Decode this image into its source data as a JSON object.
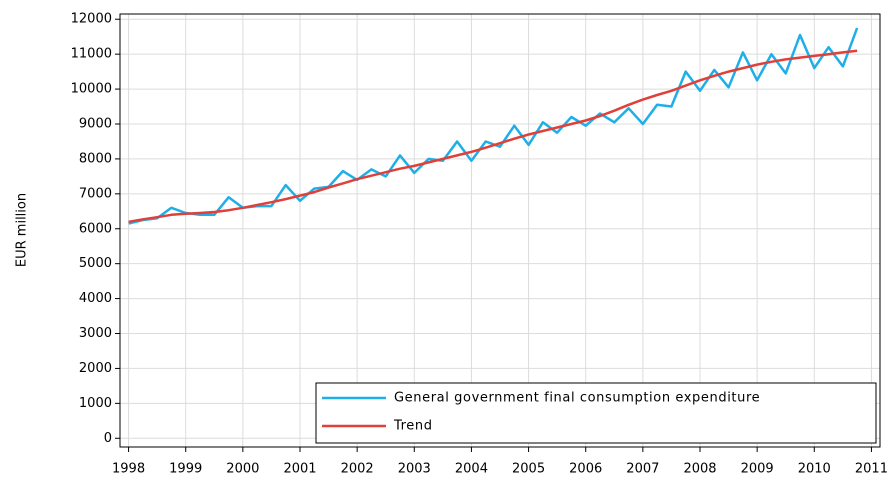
{
  "chart_data": {
    "type": "line",
    "y_label": "EUR million",
    "x": [
      1998,
      1998.25,
      1998.5,
      1998.75,
      1999,
      1999.25,
      1999.5,
      1999.75,
      2000,
      2000.25,
      2000.5,
      2000.75,
      2001,
      2001.25,
      2001.5,
      2001.75,
      2002,
      2002.25,
      2002.5,
      2002.75,
      2003,
      2003.25,
      2003.5,
      2003.75,
      2004,
      2004.25,
      2004.5,
      2004.75,
      2005,
      2005.25,
      2005.5,
      2005.75,
      2006,
      2006.25,
      2006.5,
      2006.75,
      2007,
      2007.25,
      2007.5,
      2007.75,
      2008,
      2008.25,
      2008.5,
      2008.75,
      2009,
      2009.25,
      2009.5,
      2009.75,
      2010,
      2010.25,
      2010.5,
      2010.75
    ],
    "series": [
      {
        "name": "General government final consumption expenditure",
        "color": "#1eaee8",
        "values": [
          6150,
          6250,
          6300,
          6600,
          6450,
          6400,
          6400,
          6900,
          6600,
          6650,
          6650,
          7250,
          6800,
          7150,
          7200,
          7650,
          7400,
          7700,
          7500,
          8100,
          7600,
          8000,
          7950,
          8500,
          7950,
          8500,
          8350,
          8950,
          8400,
          9050,
          8750,
          9200,
          8950,
          9300,
          9050,
          9450,
          9000,
          9550,
          9500,
          10500,
          9950,
          10550,
          10050,
          11050,
          10250,
          11000,
          10450,
          11550,
          10600,
          11200,
          10650,
          11750
        ]
      },
      {
        "name": "Trend",
        "color": "#e0403a",
        "values": [
          6200,
          6270,
          6330,
          6400,
          6430,
          6450,
          6480,
          6530,
          6600,
          6680,
          6760,
          6850,
          6950,
          7050,
          7180,
          7300,
          7420,
          7520,
          7620,
          7720,
          7800,
          7900,
          8000,
          8100,
          8200,
          8320,
          8450,
          8580,
          8700,
          8800,
          8900,
          9000,
          9100,
          9230,
          9380,
          9550,
          9700,
          9830,
          9950,
          10100,
          10250,
          10380,
          10500,
          10600,
          10700,
          10780,
          10850,
          10900,
          10950,
          11000,
          11050,
          11100
        ]
      }
    ],
    "xlim": [
      1997.85,
      2011.15
    ],
    "xticks": [
      1998,
      1999,
      2000,
      2001,
      2002,
      2003,
      2004,
      2005,
      2006,
      2007,
      2008,
      2009,
      2010,
      2011
    ],
    "ylim": [
      -250,
      12150
    ],
    "yticks": [
      0,
      1000,
      2000,
      3000,
      4000,
      5000,
      6000,
      7000,
      8000,
      9000,
      10000,
      11000,
      12000
    ],
    "grid": true,
    "legend": "lower right"
  }
}
